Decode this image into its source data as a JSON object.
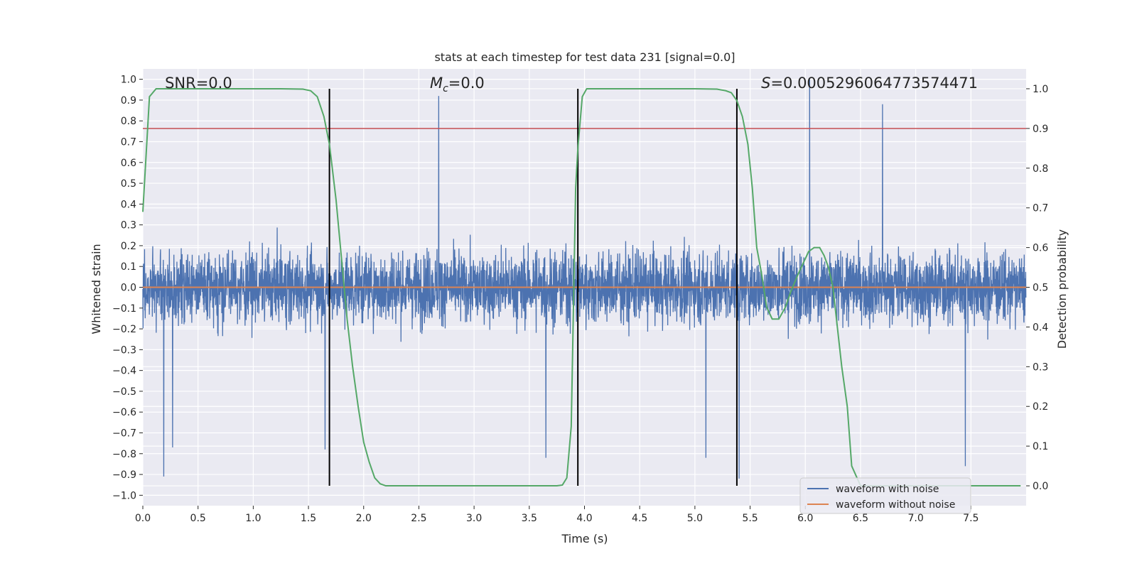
{
  "chart_data": {
    "type": "line",
    "title": "stats at each timestep for test data 231 [signal=0.0]",
    "xlabel": "Time (s)",
    "ylabel": "Whitened strain",
    "y2label": "Detection probability",
    "xlim": [
      0.0,
      8.0
    ],
    "ylim": [
      -1.05,
      1.05
    ],
    "y2lim": [
      -0.05,
      1.05
    ],
    "xticks": [
      0.0,
      0.5,
      1.0,
      1.5,
      2.0,
      2.5,
      3.0,
      3.5,
      4.0,
      4.5,
      5.0,
      5.5,
      6.0,
      6.5,
      7.0,
      7.5
    ],
    "xtick_labels": [
      "0.0",
      "0.5",
      "1.0",
      "1.5",
      "2.0",
      "2.5",
      "3.0",
      "3.5",
      "4.0",
      "4.5",
      "5.0",
      "5.5",
      "6.0",
      "6.5",
      "7.0",
      "7.5"
    ],
    "yticks": [
      -1.0,
      -0.9,
      -0.8,
      -0.7,
      -0.6,
      -0.5,
      -0.4,
      -0.3,
      -0.2,
      -0.1,
      0.0,
      0.1,
      0.2,
      0.3,
      0.4,
      0.5,
      0.6,
      0.7,
      0.8,
      0.9,
      1.0
    ],
    "ytick_labels": [
      "−1.0",
      "−0.9",
      "−0.8",
      "−0.7",
      "−0.6",
      "−0.5",
      "−0.4",
      "−0.3",
      "−0.2",
      "−0.1",
      "0.0",
      "0.1",
      "0.2",
      "0.3",
      "0.4",
      "0.5",
      "0.6",
      "0.7",
      "0.8",
      "0.9",
      "1.0"
    ],
    "y2ticks": [
      0.0,
      0.1,
      0.2,
      0.3,
      0.4,
      0.5,
      0.6,
      0.7,
      0.8,
      0.9,
      1.0
    ],
    "y2tick_labels": [
      "0.0",
      "0.1",
      "0.2",
      "0.3",
      "0.4",
      "0.5",
      "0.6",
      "0.7",
      "0.8",
      "0.9",
      "1.0"
    ],
    "annotations": [
      {
        "name": "snr",
        "text": "SNR=0.0",
        "x": 0.2
      },
      {
        "name": "mc",
        "text": "=0.0",
        "symbol": "M",
        "subscript": "c",
        "x": 2.6
      },
      {
        "name": "s",
        "text": "=0.0005296064773574471",
        "symbol": "S",
        "x": 5.6
      }
    ],
    "legend": {
      "position": "lower-right",
      "entries": [
        "waveform with noise",
        "waveform without noise"
      ]
    },
    "colors": {
      "noise": "#4c72b0",
      "clean": "#dd8452",
      "probability": "#55a868",
      "threshold": "#c44e52",
      "boundary": "#000000",
      "plot_bg": "#eaeaf2",
      "grid": "#ffffff"
    },
    "noise_series": {
      "name": "waveform with noise",
      "sample_rate_hz": 512,
      "description_visible": "random noise spanning roughly -0.92 to 1.0",
      "peaks": [
        {
          "x": 0.19,
          "y": -0.91
        },
        {
          "x": 0.27,
          "y": -0.77
        },
        {
          "x": 1.65,
          "y": -0.78
        },
        {
          "x": 2.68,
          "y": 0.92
        },
        {
          "x": 3.65,
          "y": -0.82
        },
        {
          "x": 5.1,
          "y": -0.82
        },
        {
          "x": 5.4,
          "y": -0.92
        },
        {
          "x": 6.04,
          "y": 1.0
        },
        {
          "x": 6.7,
          "y": 0.88
        },
        {
          "x": 7.45,
          "y": -0.86
        }
      ]
    },
    "clean_series": {
      "name": "waveform without noise",
      "value": 0.0
    },
    "probability_series": {
      "name": "Detection probability",
      "x": [
        0.0,
        0.06,
        0.12,
        0.25,
        0.5,
        0.75,
        1.0,
        1.25,
        1.45,
        1.52,
        1.58,
        1.64,
        1.69,
        1.75,
        1.8,
        1.85,
        1.9,
        1.95,
        2.0,
        2.05,
        2.1,
        2.15,
        2.2,
        2.3,
        2.5,
        3.0,
        3.5,
        3.75,
        3.8,
        3.84,
        3.88,
        3.9,
        3.92,
        3.94,
        3.98,
        4.02,
        4.1,
        4.5,
        5.0,
        5.2,
        5.28,
        5.33,
        5.38,
        5.43,
        5.48,
        5.52,
        5.56,
        5.6,
        5.65,
        5.7,
        5.76,
        5.82,
        5.87,
        5.93,
        5.98,
        6.03,
        6.08,
        6.13,
        6.17,
        6.21,
        6.25,
        6.29,
        6.33,
        6.38,
        6.42,
        6.5,
        6.8,
        7.0,
        7.5,
        7.95
      ],
      "values": [
        0.69,
        0.98,
        1.0,
        1.0,
        1.0,
        1.0,
        1.0,
        1.0,
        0.999,
        0.995,
        0.98,
        0.93,
        0.86,
        0.72,
        0.57,
        0.42,
        0.3,
        0.2,
        0.11,
        0.06,
        0.02,
        0.005,
        0.0,
        0.0,
        0.0,
        0.0,
        0.0,
        0.0,
        0.002,
        0.02,
        0.15,
        0.45,
        0.75,
        0.85,
        0.98,
        1.0,
        1.0,
        1.0,
        1.0,
        0.999,
        0.995,
        0.99,
        0.97,
        0.93,
        0.86,
        0.75,
        0.6,
        0.54,
        0.45,
        0.42,
        0.42,
        0.45,
        0.49,
        0.53,
        0.56,
        0.59,
        0.6,
        0.6,
        0.58,
        0.55,
        0.5,
        0.4,
        0.3,
        0.2,
        0.05,
        0.0,
        0.0,
        0.0,
        0.0,
        0.0
      ]
    },
    "threshold": {
      "y2": 0.9
    },
    "boundaries": [
      1.69,
      3.94,
      5.38
    ]
  }
}
